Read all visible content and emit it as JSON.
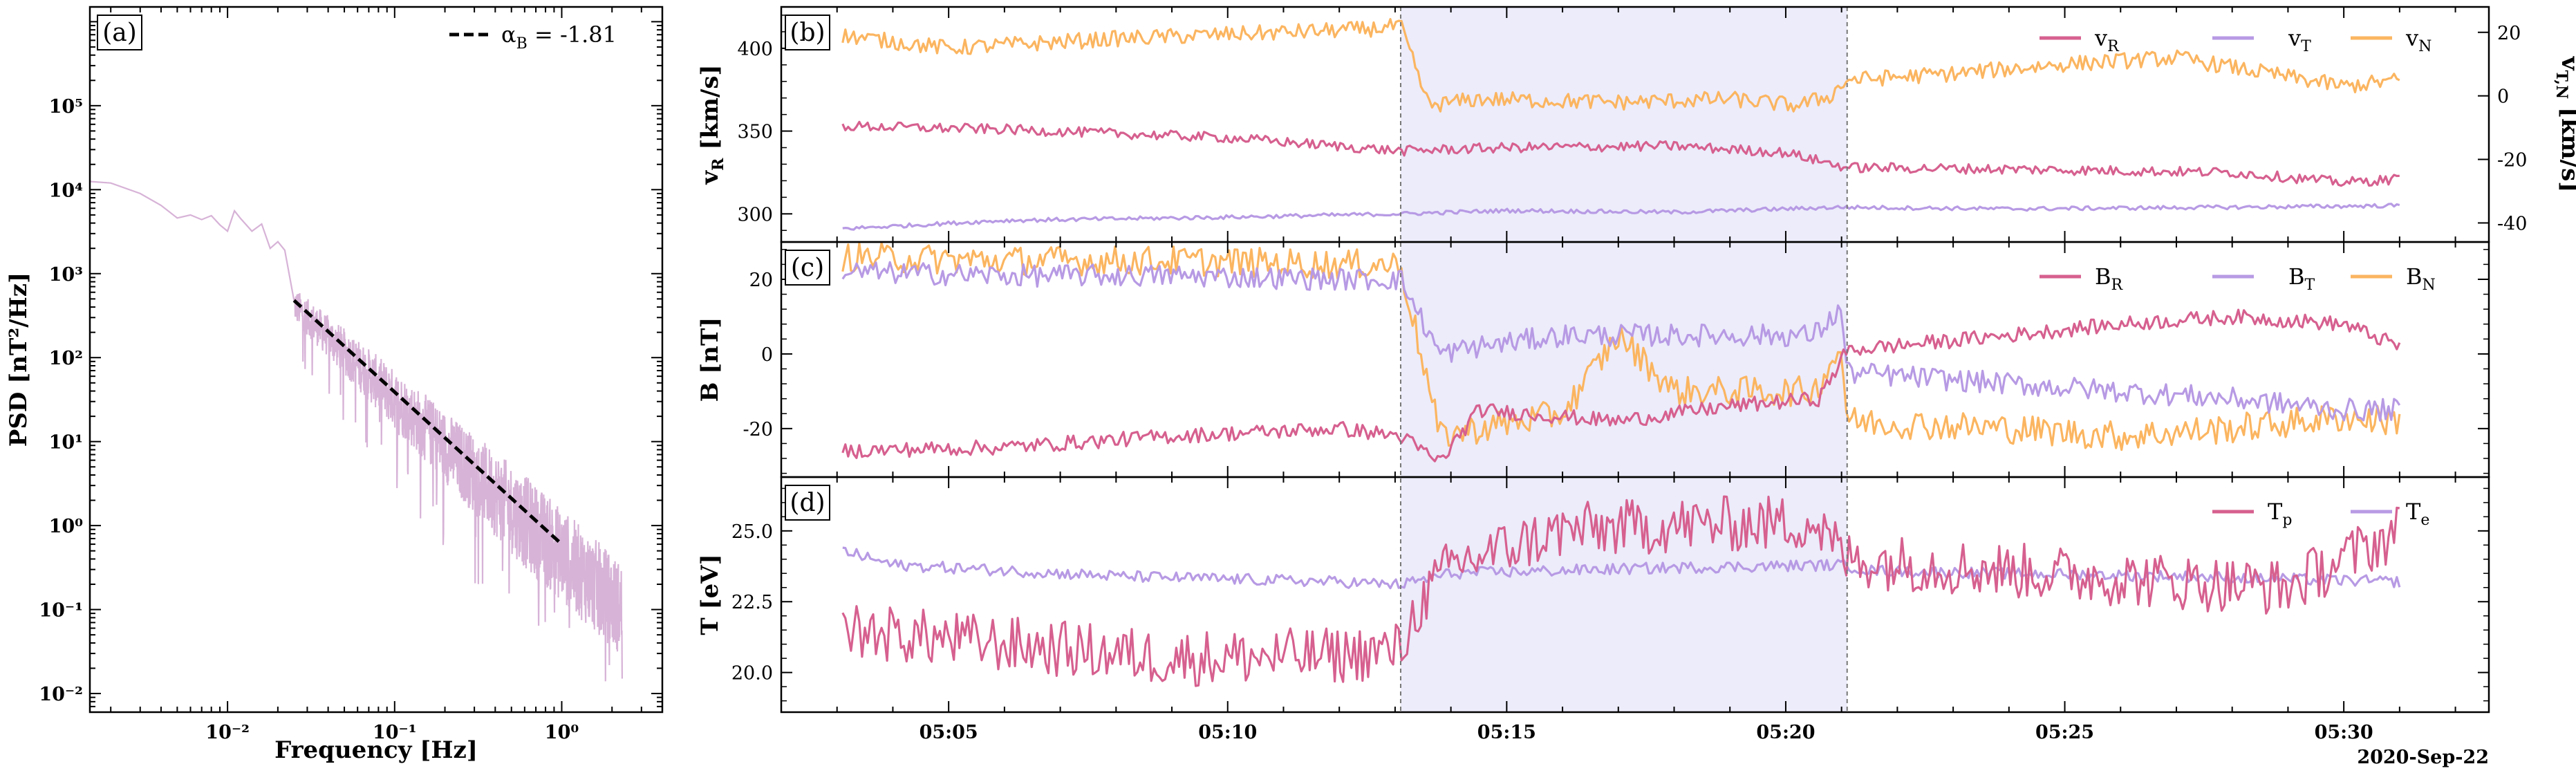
{
  "chart_data": [
    {
      "panel": "(a)",
      "type": "line",
      "xlabel": "Frequency [Hz]",
      "ylabel": "PSD [nT²/Hz]",
      "xscale": "log",
      "yscale": "log",
      "xlim": [
        0.0015,
        4
      ],
      "ylim": [
        0.006,
        1500000
      ],
      "xticks": [
        "10⁻²",
        "10⁻¹",
        "10⁰"
      ],
      "yticks": [
        "10⁻²",
        "10⁻¹",
        "10⁰",
        "10¹",
        "10²",
        "10³",
        "10⁴",
        "10⁵"
      ],
      "legend": {
        "label": "α",
        "label_sub": "B",
        "value": " = -1.81",
        "position": "top-right"
      },
      "fit": {
        "slope": -1.81,
        "x": [
          0.025,
          1.0
        ],
        "y": [
          480,
          0.6
        ]
      },
      "series": [
        {
          "color": "#d7b3d7",
          "x": [
            0.0015,
            0.002,
            0.003,
            0.004,
            0.005,
            0.006,
            0.007,
            0.008,
            0.009,
            0.01,
            0.011,
            0.012,
            0.014,
            0.016,
            0.018,
            0.02,
            0.022,
            0.025
          ],
          "y": [
            12500,
            12000,
            9000,
            6500,
            4600,
            5000,
            4400,
            4900,
            3800,
            3200,
            5600,
            4500,
            3200,
            3900,
            2000,
            2400,
            1900,
            480
          ]
        }
      ]
    },
    {
      "panel": "(b)",
      "type": "line",
      "ylabel": "v",
      "ylabel_sub": "R",
      "ylabel_unit": " [km/s]",
      "ylabel_right": "v",
      "ylabel_right_sub": "T,N",
      "ylabel_right_unit": " [km/s]",
      "ylim": [
        283,
        425
      ],
      "yticks": [
        300,
        350,
        400
      ],
      "ylim_right": [
        -46,
        28
      ],
      "yticks_right": [
        -40,
        -20,
        0,
        20
      ],
      "legend_position": "top-right",
      "series": [
        {
          "name": "v",
          "sub": "R",
          "color": "#d6608f",
          "axis": "left",
          "points": [
            [
              3.1,
              353
            ],
            [
              6,
              351
            ],
            [
              10,
              346
            ],
            [
              13.1,
              338
            ],
            [
              15,
              340
            ],
            [
              18,
              341
            ],
            [
              20,
              337
            ],
            [
              21.1,
              328
            ],
            [
              24,
              327
            ],
            [
              28,
              325
            ],
            [
              30,
              319
            ],
            [
              31,
              321
            ]
          ]
        },
        {
          "name": "v",
          "sub": "T",
          "color": "#b79ae4",
          "axis": "left",
          "points": [
            [
              3.1,
              291
            ],
            [
              6,
              296
            ],
            [
              10,
              298
            ],
            [
              13.1,
              300
            ],
            [
              15,
              302
            ],
            [
              18,
              301
            ],
            [
              21,
              304
            ],
            [
              24,
              303
            ],
            [
              28,
              304
            ],
            [
              31,
              305
            ]
          ]
        },
        {
          "name": "v",
          "sub": "N",
          "color": "#fbb560",
          "axis": "right",
          "points": [
            [
              3.1,
              19
            ],
            [
              5,
              15
            ],
            [
              8,
              18
            ],
            [
              11,
              20
            ],
            [
              12.5,
              21
            ],
            [
              13.1,
              22
            ],
            [
              13.6,
              -3
            ],
            [
              14.5,
              -1
            ],
            [
              17,
              -2
            ],
            [
              19,
              -1
            ],
            [
              20.2,
              -3
            ],
            [
              20.8,
              0
            ],
            [
              21.1,
              5
            ],
            [
              23,
              7
            ],
            [
              25,
              10
            ],
            [
              27,
              12
            ],
            [
              29,
              6
            ],
            [
              30,
              3
            ],
            [
              31,
              5
            ]
          ]
        }
      ]
    },
    {
      "panel": "(c)",
      "type": "line",
      "ylabel": "B [nT]",
      "ylim": [
        -33,
        30
      ],
      "yticks": [
        -20,
        0,
        20
      ],
      "legend_position": "top-right",
      "series": [
        {
          "name": "B",
          "sub": "R",
          "color": "#d6608f",
          "points": [
            [
              3.1,
              -26
            ],
            [
              6,
              -25
            ],
            [
              9,
              -22
            ],
            [
              12,
              -20
            ],
            [
              13.1,
              -22
            ],
            [
              13.8,
              -29
            ],
            [
              14.5,
              -15
            ],
            [
              17,
              -18
            ],
            [
              19,
              -14
            ],
            [
              20.6,
              -12
            ],
            [
              21.1,
              1
            ],
            [
              24,
              5
            ],
            [
              26,
              8
            ],
            [
              28,
              10
            ],
            [
              30,
              8
            ],
            [
              30.5,
              5
            ],
            [
              31,
              2
            ]
          ]
        },
        {
          "name": "B",
          "sub": "T",
          "color": "#b79ae4",
          "points": [
            [
              3.1,
              22
            ],
            [
              6,
              21
            ],
            [
              9,
              21
            ],
            [
              12,
              20
            ],
            [
              13.1,
              20
            ],
            [
              13.8,
              0
            ],
            [
              14.5,
              2
            ],
            [
              16,
              5
            ],
            [
              18,
              5
            ],
            [
              20.5,
              5
            ],
            [
              21,
              12
            ],
            [
              21.1,
              -5
            ],
            [
              24,
              -8
            ],
            [
              26,
              -10
            ],
            [
              28,
              -12
            ],
            [
              30,
              -15
            ],
            [
              31,
              -15
            ]
          ]
        },
        {
          "name": "B",
          "sub": "N",
          "color": "#fbb560",
          "points": [
            [
              3.1,
              26
            ],
            [
              6,
              25
            ],
            [
              9,
              25
            ],
            [
              12,
              24
            ],
            [
              13.1,
              24
            ],
            [
              13.8,
              -22
            ],
            [
              14.5,
              -20
            ],
            [
              16,
              -16
            ],
            [
              17,
              5
            ],
            [
              18,
              -10
            ],
            [
              20.5,
              -10
            ],
            [
              21,
              2
            ],
            [
              21.1,
              -18
            ],
            [
              24,
              -20
            ],
            [
              26,
              -22
            ],
            [
              28,
              -20
            ],
            [
              30,
              -17
            ],
            [
              31,
              -18
            ]
          ]
        }
      ]
    },
    {
      "panel": "(d)",
      "type": "line",
      "ylabel": "T [eV]",
      "ylim": [
        18.6,
        26.9
      ],
      "yticks": [
        "20.0",
        "22.5",
        "25.0"
      ],
      "xlabel_extra": "2020-Sep-22",
      "xticks": [
        "05:05",
        "05:10",
        "05:15",
        "05:20",
        "05:25",
        "05:30"
      ],
      "legend_position": "top-right",
      "series": [
        {
          "name": "T",
          "sub": "p",
          "color": "#d6608f",
          "points": [
            [
              3.1,
              21.5
            ],
            [
              6,
              21
            ],
            [
              9,
              20.5
            ],
            [
              12,
              20.6
            ],
            [
              13.1,
              20.8
            ],
            [
              13.4,
              22.3
            ],
            [
              14,
              23.8
            ],
            [
              16,
              25
            ],
            [
              18,
              25.2
            ],
            [
              20.5,
              25.3
            ],
            [
              21.1,
              24
            ],
            [
              24,
              23.6
            ],
            [
              27,
              23.2
            ],
            [
              29,
              23
            ],
            [
              30,
              24
            ],
            [
              31,
              25
            ]
          ]
        },
        {
          "name": "T",
          "sub": "e",
          "color": "#b79ae4",
          "points": [
            [
              3.1,
              24.3
            ],
            [
              4,
              23.8
            ],
            [
              8,
              23.4
            ],
            [
              12,
              23.2
            ],
            [
              13.1,
              23.1
            ],
            [
              14,
              23.5
            ],
            [
              18,
              23.7
            ],
            [
              21,
              23.8
            ],
            [
              21.5,
              23.6
            ],
            [
              24,
              23.5
            ],
            [
              27,
              23.4
            ],
            [
              29,
              23.3
            ],
            [
              31,
              23.2
            ]
          ]
        }
      ]
    }
  ],
  "event_interval": {
    "start_min": 13.1,
    "end_min": 21.1,
    "color": "#ececfb"
  }
}
